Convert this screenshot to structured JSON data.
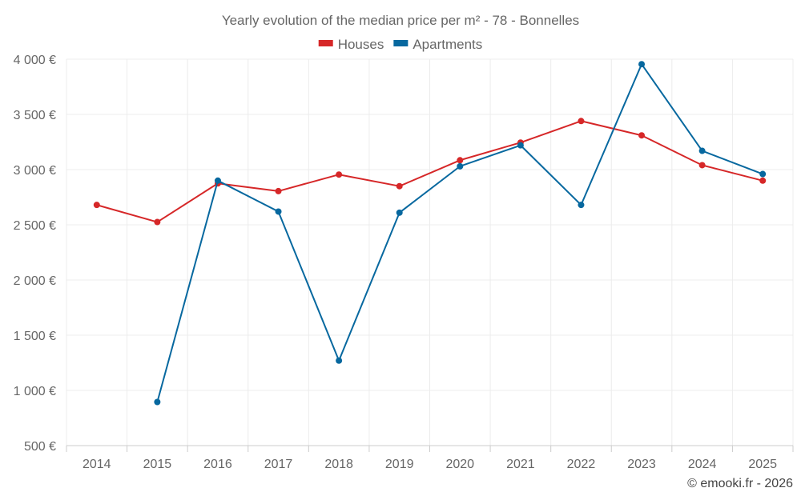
{
  "chart_data": {
    "type": "line",
    "title": "Yearly evolution of the median price per m² - 78 - Bonnelles",
    "categories": [
      "2014",
      "2015",
      "2016",
      "2017",
      "2018",
      "2019",
      "2020",
      "2021",
      "2022",
      "2023",
      "2024",
      "2025"
    ],
    "series": [
      {
        "name": "Houses",
        "color": "#d62728",
        "values": [
          2680,
          2525,
          2875,
          2805,
          2955,
          2850,
          3085,
          3245,
          3440,
          3310,
          3040,
          2900
        ]
      },
      {
        "name": "Apartments",
        "color": "#07689f",
        "values": [
          null,
          895,
          2900,
          2620,
          1270,
          2610,
          3030,
          3220,
          2680,
          3955,
          3170,
          2960
        ]
      }
    ],
    "y_ticks": [
      500,
      1000,
      1500,
      2000,
      2500,
      3000,
      3500,
      4000
    ],
    "y_tick_labels": [
      "500 €",
      "1 000 €",
      "1 500 €",
      "2 000 €",
      "2 500 €",
      "3 000 €",
      "3 500 €",
      "4 000 €"
    ],
    "ylim": [
      500,
      4000
    ],
    "xlabel": "",
    "ylabel": "",
    "legend_position": "top-center",
    "credit": "© emooki.fr - 2026"
  }
}
